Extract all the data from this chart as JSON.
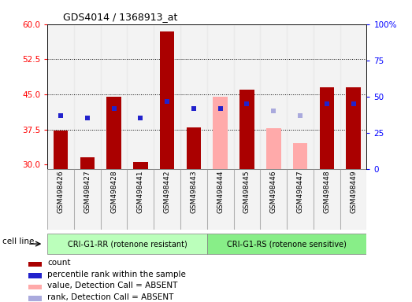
{
  "title": "GDS4014 / 1368913_at",
  "samples": [
    "GSM498426",
    "GSM498427",
    "GSM498428",
    "GSM498441",
    "GSM498442",
    "GSM498443",
    "GSM498444",
    "GSM498445",
    "GSM498446",
    "GSM498447",
    "GSM498448",
    "GSM498449"
  ],
  "group1_count": 6,
  "group2_count": 6,
  "group1_label": "CRI-G1-RR (rotenone resistant)",
  "group2_label": "CRI-G1-RS (rotenone sensitive)",
  "cell_line_label": "cell line",
  "red_values": [
    37.2,
    31.5,
    44.5,
    30.5,
    58.5,
    38.0,
    null,
    46.0,
    null,
    null,
    46.5,
    46.5
  ],
  "pink_values": [
    null,
    null,
    null,
    null,
    null,
    null,
    44.5,
    null,
    37.8,
    34.5,
    null,
    null
  ],
  "blue_values": [
    40.5,
    40.0,
    42.0,
    40.0,
    43.5,
    42.0,
    42.0,
    43.0,
    null,
    null,
    43.0,
    43.0
  ],
  "lavender_values": [
    null,
    null,
    null,
    null,
    null,
    null,
    null,
    null,
    41.5,
    40.5,
    null,
    null
  ],
  "ylim_left": [
    29,
    60
  ],
  "ylim_right": [
    0,
    100
  ],
  "yticks_left": [
    30,
    37.5,
    45,
    52.5,
    60
  ],
  "yticks_right": [
    0,
    25,
    50,
    75,
    100
  ],
  "bar_width": 0.55,
  "marker_size": 4,
  "red_color": "#aa0000",
  "pink_color": "#ffaaaa",
  "blue_color": "#2222cc",
  "lavender_color": "#aaaadd",
  "group1_bg": "#bbffbb",
  "group2_bg": "#88ee88",
  "legend_items": [
    {
      "color": "#aa0000",
      "label": "count"
    },
    {
      "color": "#2222cc",
      "label": "percentile rank within the sample"
    },
    {
      "color": "#ffaaaa",
      "label": "value, Detection Call = ABSENT"
    },
    {
      "color": "#aaaadd",
      "label": "rank, Detection Call = ABSENT"
    }
  ]
}
